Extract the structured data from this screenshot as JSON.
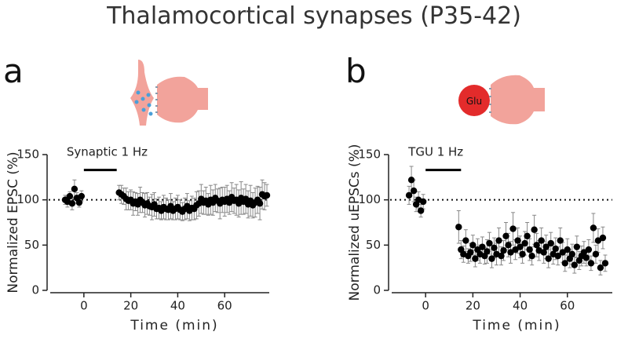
{
  "title": "Thalamocortical synapses (P35-42)",
  "chart_data": [
    {
      "type": "scatter",
      "panel_label": "a",
      "xlabel": "Time (min)",
      "ylabel": "Normalized EPSC (%)",
      "xlim": [
        -15,
        79
      ],
      "ylim": [
        0,
        150
      ],
      "xticks": [
        0,
        20,
        40,
        60
      ],
      "yticks": [
        0,
        50,
        100,
        150
      ],
      "reference_line": 100,
      "annotation": {
        "text": "Synaptic 1 Hz",
        "x_start": 0,
        "x_end": 14,
        "y": 133
      },
      "x": [
        -8,
        -7,
        -6,
        -5,
        -4,
        -3,
        -2,
        -1,
        15,
        16,
        17,
        18,
        19,
        20,
        21,
        22,
        23,
        24,
        25,
        26,
        27,
        28,
        29,
        30,
        31,
        32,
        33,
        34,
        35,
        36,
        37,
        38,
        39,
        40,
        41,
        42,
        43,
        44,
        45,
        46,
        47,
        48,
        49,
        50,
        51,
        52,
        53,
        54,
        55,
        56,
        57,
        58,
        59,
        60,
        61,
        62,
        63,
        64,
        65,
        66,
        67,
        68,
        69,
        70,
        71,
        72,
        73,
        74,
        75,
        76,
        77,
        78
      ],
      "series": [
        {
          "color": "#000000",
          "values": [
            100,
            98,
            104,
            96,
            112,
            102,
            97,
            104,
            108,
            106,
            104,
            101,
            99,
            100,
            96,
            98,
            95,
            100,
            97,
            94,
            96,
            93,
            92,
            95,
            90,
            91,
            88,
            92,
            90,
            89,
            93,
            88,
            90,
            92,
            89,
            87,
            90,
            93,
            88,
            91,
            90,
            94,
            96,
            101,
            97,
            99,
            95,
            100,
            97,
            102,
            99,
            96,
            100,
            98,
            101,
            97,
            103,
            99,
            100,
            96,
            102,
            98,
            101,
            95,
            99,
            94,
            97,
            100,
            96,
            106,
            104,
            105
          ],
          "errors": [
            5,
            6,
            5,
            7,
            10,
            6,
            5,
            6,
            8,
            10,
            9,
            12,
            10,
            11,
            13,
            10,
            12,
            14,
            11,
            13,
            12,
            10,
            14,
            13,
            11,
            12,
            10,
            13,
            12,
            11,
            14,
            10,
            12,
            13,
            11,
            10,
            12,
            14,
            11,
            13,
            12,
            15,
            14,
            16,
            13,
            15,
            12,
            16,
            14,
            15,
            13,
            17,
            14,
            16,
            15,
            13,
            16,
            14,
            17,
            15,
            18,
            14,
            16,
            15,
            17,
            14,
            16,
            15,
            18,
            16,
            15,
            12
          ]
        }
      ]
    },
    {
      "type": "scatter",
      "panel_label": "b",
      "inset_label": "Glu",
      "xlabel": "Time (min)",
      "ylabel": "Normalized uEPSCs (%)",
      "xlim": [
        -15,
        79
      ],
      "ylim": [
        0,
        150
      ],
      "xticks": [
        0,
        20,
        40,
        60
      ],
      "yticks": [
        0,
        50,
        100,
        150
      ],
      "reference_line": 100,
      "annotation": {
        "text": "TGU 1 Hz",
        "x_start": 0,
        "x_end": 15,
        "y": 133
      },
      "x": [
        -7,
        -6,
        -5,
        -4,
        -3,
        -2,
        -1,
        14,
        15,
        16,
        17,
        18,
        19,
        20,
        21,
        22,
        23,
        24,
        25,
        26,
        27,
        28,
        29,
        30,
        31,
        32,
        33,
        34,
        35,
        36,
        37,
        38,
        39,
        40,
        41,
        42,
        43,
        44,
        45,
        46,
        47,
        48,
        49,
        50,
        51,
        52,
        53,
        54,
        55,
        56,
        57,
        58,
        59,
        60,
        61,
        62,
        63,
        64,
        65,
        66,
        67,
        68,
        69,
        70,
        71,
        72,
        73,
        74,
        75,
        76
      ],
      "series": [
        {
          "color": "#000000",
          "values": [
            105,
            122,
            110,
            95,
            100,
            88,
            98,
            70,
            45,
            40,
            55,
            38,
            42,
            50,
            35,
            45,
            40,
            48,
            38,
            43,
            52,
            35,
            47,
            40,
            55,
            38,
            44,
            60,
            50,
            42,
            68,
            45,
            55,
            48,
            40,
            52,
            60,
            45,
            38,
            67,
            50,
            44,
            55,
            42,
            48,
            35,
            52,
            40,
            46,
            38,
            55,
            42,
            30,
            45,
            35,
            40,
            28,
            48,
            33,
            38,
            42,
            36,
            45,
            30,
            69,
            40,
            55,
            25,
            58,
            30
          ],
          "errors": [
            10,
            15,
            12,
            8,
            9,
            7,
            8,
            18,
            10,
            9,
            12,
            8,
            10,
            11,
            9,
            12,
            10,
            11,
            9,
            13,
            12,
            10,
            11,
            12,
            14,
            10,
            11,
            15,
            13,
            12,
            18,
            11,
            14,
            12,
            10,
            13,
            15,
            12,
            10,
            16,
            13,
            11,
            14,
            12,
            13,
            10,
            12,
            11,
            12,
            10,
            14,
            11,
            9,
            12,
            10,
            11,
            9,
            12,
            10,
            11,
            12,
            9,
            11,
            8,
            16,
            10,
            13,
            8,
            12,
            9
          ]
        }
      ]
    }
  ]
}
